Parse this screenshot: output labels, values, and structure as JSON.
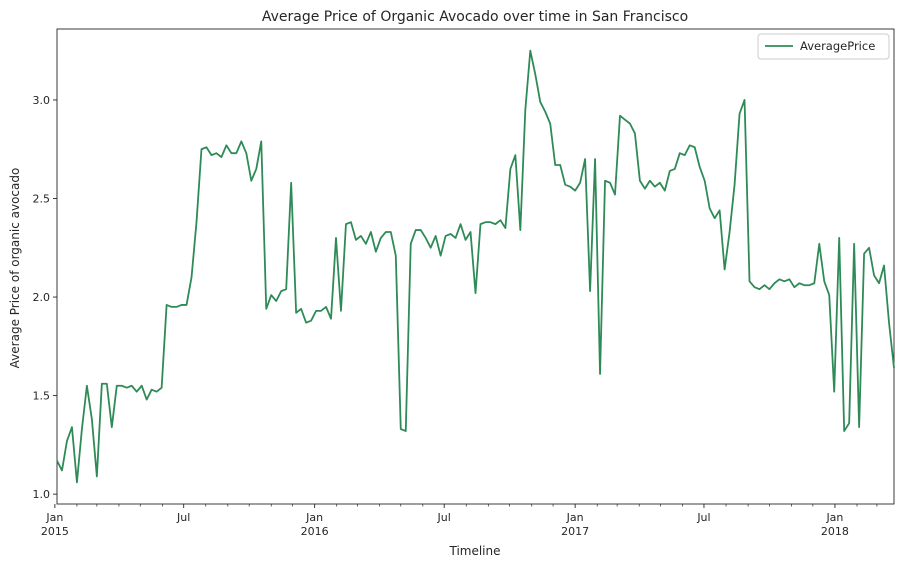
{
  "chart_data": {
    "type": "line",
    "title": "Average Price of Organic Avocado over time in San Francisco",
    "xlabel": "Timeline",
    "ylabel": "Average Price of organic avocado",
    "xlim": [
      "2015-01-04",
      "2018-03-25"
    ],
    "ylim": [
      0.95,
      3.36
    ],
    "y_ticks": [
      1.0,
      1.5,
      2.0,
      2.5,
      3.0
    ],
    "y_tick_labels": [
      "1.0",
      "1.5",
      "2.0",
      "2.5",
      "3.0"
    ],
    "x_ticks": [
      {
        "date": "2015-01-01",
        "label": "Jan",
        "sublabel": "2015"
      },
      {
        "date": "2015-07-01",
        "label": "Jul",
        "sublabel": ""
      },
      {
        "date": "2016-01-01",
        "label": "Jan",
        "sublabel": "2016"
      },
      {
        "date": "2016-07-01",
        "label": "Jul",
        "sublabel": ""
      },
      {
        "date": "2017-01-01",
        "label": "Jan",
        "sublabel": "2017"
      },
      {
        "date": "2017-07-01",
        "label": "Jul",
        "sublabel": ""
      },
      {
        "date": "2018-01-01",
        "label": "Jan",
        "sublabel": "2018"
      }
    ],
    "legend": {
      "position": "upper right"
    },
    "grid": false,
    "series": [
      {
        "name": "AveragePrice",
        "color": "#2e8b57",
        "x": [
          "2015-01-04",
          "2015-01-11",
          "2015-01-18",
          "2015-01-25",
          "2015-02-01",
          "2015-02-08",
          "2015-02-15",
          "2015-02-22",
          "2015-03-01",
          "2015-03-08",
          "2015-03-15",
          "2015-03-22",
          "2015-03-29",
          "2015-04-05",
          "2015-04-12",
          "2015-04-19",
          "2015-04-26",
          "2015-05-03",
          "2015-05-10",
          "2015-05-17",
          "2015-05-24",
          "2015-05-31",
          "2015-06-07",
          "2015-06-14",
          "2015-06-21",
          "2015-06-28",
          "2015-07-05",
          "2015-07-12",
          "2015-07-19",
          "2015-07-26",
          "2015-08-02",
          "2015-08-09",
          "2015-08-16",
          "2015-08-23",
          "2015-08-30",
          "2015-09-06",
          "2015-09-13",
          "2015-09-20",
          "2015-09-27",
          "2015-10-04",
          "2015-10-11",
          "2015-10-18",
          "2015-10-25",
          "2015-11-01",
          "2015-11-08",
          "2015-11-15",
          "2015-11-22",
          "2015-11-29",
          "2015-12-06",
          "2015-12-13",
          "2015-12-20",
          "2015-12-27",
          "2016-01-03",
          "2016-01-10",
          "2016-01-17",
          "2016-01-24",
          "2016-01-31",
          "2016-02-07",
          "2016-02-14",
          "2016-02-21",
          "2016-02-28",
          "2016-03-06",
          "2016-03-13",
          "2016-03-20",
          "2016-03-27",
          "2016-04-03",
          "2016-04-10",
          "2016-04-17",
          "2016-04-24",
          "2016-05-01",
          "2016-05-08",
          "2016-05-15",
          "2016-05-22",
          "2016-05-29",
          "2016-06-05",
          "2016-06-12",
          "2016-06-19",
          "2016-06-26",
          "2016-07-03",
          "2016-07-10",
          "2016-07-17",
          "2016-07-24",
          "2016-07-31",
          "2016-08-07",
          "2016-08-14",
          "2016-08-21",
          "2016-08-28",
          "2016-09-04",
          "2016-09-11",
          "2016-09-18",
          "2016-09-25",
          "2016-10-02",
          "2016-10-09",
          "2016-10-16",
          "2016-10-23",
          "2016-10-30",
          "2016-11-06",
          "2016-11-13",
          "2016-11-20",
          "2016-11-27",
          "2016-12-04",
          "2016-12-11",
          "2016-12-18",
          "2016-12-25",
          "2017-01-01",
          "2017-01-08",
          "2017-01-15",
          "2017-01-22",
          "2017-01-29",
          "2017-02-05",
          "2017-02-12",
          "2017-02-19",
          "2017-02-26",
          "2017-03-05",
          "2017-03-12",
          "2017-03-19",
          "2017-03-26",
          "2017-04-02",
          "2017-04-09",
          "2017-04-16",
          "2017-04-23",
          "2017-04-30",
          "2017-05-07",
          "2017-05-14",
          "2017-05-21",
          "2017-05-28",
          "2017-06-04",
          "2017-06-11",
          "2017-06-18",
          "2017-06-25",
          "2017-07-02",
          "2017-07-09",
          "2017-07-16",
          "2017-07-23",
          "2017-07-30",
          "2017-08-06",
          "2017-08-13",
          "2017-08-20",
          "2017-08-27",
          "2017-09-03",
          "2017-09-10",
          "2017-09-17",
          "2017-09-24",
          "2017-10-01",
          "2017-10-08",
          "2017-10-15",
          "2017-10-22",
          "2017-10-29",
          "2017-11-05",
          "2017-11-12",
          "2017-11-19",
          "2017-11-26",
          "2017-12-03",
          "2017-12-10",
          "2017-12-17",
          "2017-12-24",
          "2017-12-31",
          "2018-01-07",
          "2018-01-14",
          "2018-01-21",
          "2018-01-28",
          "2018-02-04",
          "2018-02-11",
          "2018-02-18",
          "2018-02-25",
          "2018-03-04",
          "2018-03-11",
          "2018-03-18",
          "2018-03-25"
        ],
        "y": [
          1.17,
          1.12,
          1.27,
          1.34,
          1.06,
          1.33,
          1.55,
          1.38,
          1.09,
          1.56,
          1.56,
          1.34,
          1.55,
          1.55,
          1.54,
          1.55,
          1.52,
          1.55,
          1.48,
          1.53,
          1.52,
          1.54,
          1.96,
          1.95,
          1.95,
          1.96,
          1.96,
          2.1,
          2.38,
          2.75,
          2.76,
          2.72,
          2.73,
          2.71,
          2.77,
          2.73,
          2.73,
          2.79,
          2.73,
          2.59,
          2.65,
          2.79,
          1.94,
          2.01,
          1.98,
          2.03,
          2.04,
          2.58,
          1.92,
          1.94,
          1.87,
          1.88,
          1.93,
          1.93,
          1.95,
          1.89,
          2.3,
          1.93,
          2.37,
          2.38,
          2.29,
          2.31,
          2.27,
          2.33,
          2.23,
          2.3,
          2.33,
          2.33,
          2.21,
          1.33,
          1.32,
          2.27,
          2.34,
          2.34,
          2.3,
          2.25,
          2.31,
          2.21,
          2.31,
          2.32,
          2.3,
          2.37,
          2.29,
          2.33,
          2.02,
          2.37,
          2.38,
          2.38,
          2.37,
          2.39,
          2.35,
          2.65,
          2.72,
          2.34,
          2.95,
          3.25,
          3.13,
          2.99,
          2.94,
          2.88,
          2.67,
          2.67,
          2.57,
          2.56,
          2.54,
          2.58,
          2.7,
          2.03,
          2.7,
          1.61,
          2.59,
          2.58,
          2.52,
          2.92,
          2.9,
          2.88,
          2.83,
          2.59,
          2.55,
          2.59,
          2.56,
          2.58,
          2.54,
          2.64,
          2.65,
          2.73,
          2.72,
          2.77,
          2.76,
          2.66,
          2.59,
          2.45,
          2.4,
          2.44,
          2.14,
          2.33,
          2.57,
          2.93,
          3.0,
          2.08,
          2.05,
          2.04,
          2.06,
          2.04,
          2.07,
          2.09,
          2.08,
          2.09,
          2.05,
          2.07,
          2.06,
          2.06,
          2.07,
          2.27,
          2.08,
          2.01,
          1.52,
          2.3,
          1.32,
          1.36,
          2.27,
          1.34,
          2.22,
          2.25,
          2.11,
          2.07,
          2.16,
          1.87,
          1.64
        ]
      }
    ]
  }
}
